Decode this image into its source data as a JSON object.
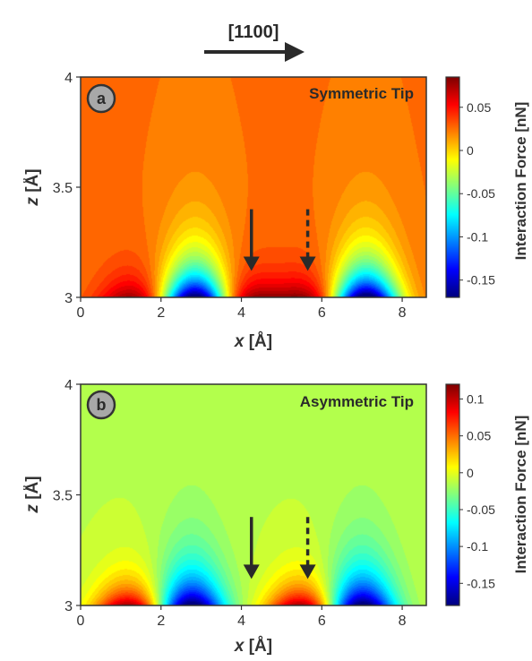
{
  "direction_label": "[1100]",
  "chart_data": [
    {
      "type": "heatmap",
      "panel": "a",
      "annotation": "Symmetric Tip",
      "xlabel_var": "x",
      "xlabel_unit": "[Å]",
      "ylabel_var": "z",
      "ylabel_unit": "[Å]",
      "xlim": [
        0,
        8.6
      ],
      "ylim": [
        3,
        4
      ],
      "x_ticks": [
        0,
        2,
        4,
        6,
        8
      ],
      "y_ticks": [
        3,
        3.5,
        4
      ],
      "y_tick_labels": [
        "3",
        "3.5",
        "4"
      ],
      "colorbar_label": "Interaction Force [nN]",
      "colorbar_range": [
        -0.17,
        0.085
      ],
      "colorbar_ticks": [
        0.05,
        0,
        -0.05,
        -0.1,
        -0.15
      ],
      "colorbar_tick_labels": [
        "0.05",
        "0",
        "-0.05",
        "-0.1",
        "-0.15"
      ],
      "background_value": 0.025,
      "attractive_minima_x": [
        2.85,
        7.1
      ],
      "repulsive_maxima_x": [
        1.3,
        4.2,
        5.6
      ],
      "arrows": [
        {
          "x": 4.25,
          "style": "solid",
          "z_from": 3.4,
          "z_to": 3.12
        },
        {
          "x": 5.65,
          "style": "dashed",
          "z_from": 3.4,
          "z_to": 3.12
        }
      ]
    },
    {
      "type": "heatmap",
      "panel": "b",
      "annotation": "Asymmetric Tip",
      "xlabel_var": "x",
      "xlabel_unit": "[Å]",
      "ylabel_var": "z",
      "ylabel_unit": "[Å]",
      "xlim": [
        0,
        8.6
      ],
      "ylim": [
        3,
        4
      ],
      "x_ticks": [
        0,
        2,
        4,
        6,
        8
      ],
      "y_ticks": [
        3,
        3.5,
        4
      ],
      "y_tick_labels": [
        "3",
        "3.5",
        "4"
      ],
      "colorbar_label": "Interaction Force [nN]",
      "colorbar_range": [
        -0.18,
        0.12
      ],
      "colorbar_ticks": [
        0.1,
        0.05,
        0,
        -0.05,
        -0.1,
        -0.15
      ],
      "colorbar_tick_labels": [
        "0.1",
        "0.05",
        "0",
        "-0.05",
        "-0.1",
        "-0.15"
      ],
      "background_value": -0.012,
      "attractive_minima_x": [
        2.75,
        7.0
      ],
      "repulsive_maxima_x": [
        1.2,
        5.5
      ],
      "arrows": [
        {
          "x": 4.25,
          "style": "solid",
          "z_from": 3.4,
          "z_to": 3.12
        },
        {
          "x": 5.65,
          "style": "dashed",
          "z_from": 3.4,
          "z_to": 3.12
        }
      ]
    }
  ]
}
